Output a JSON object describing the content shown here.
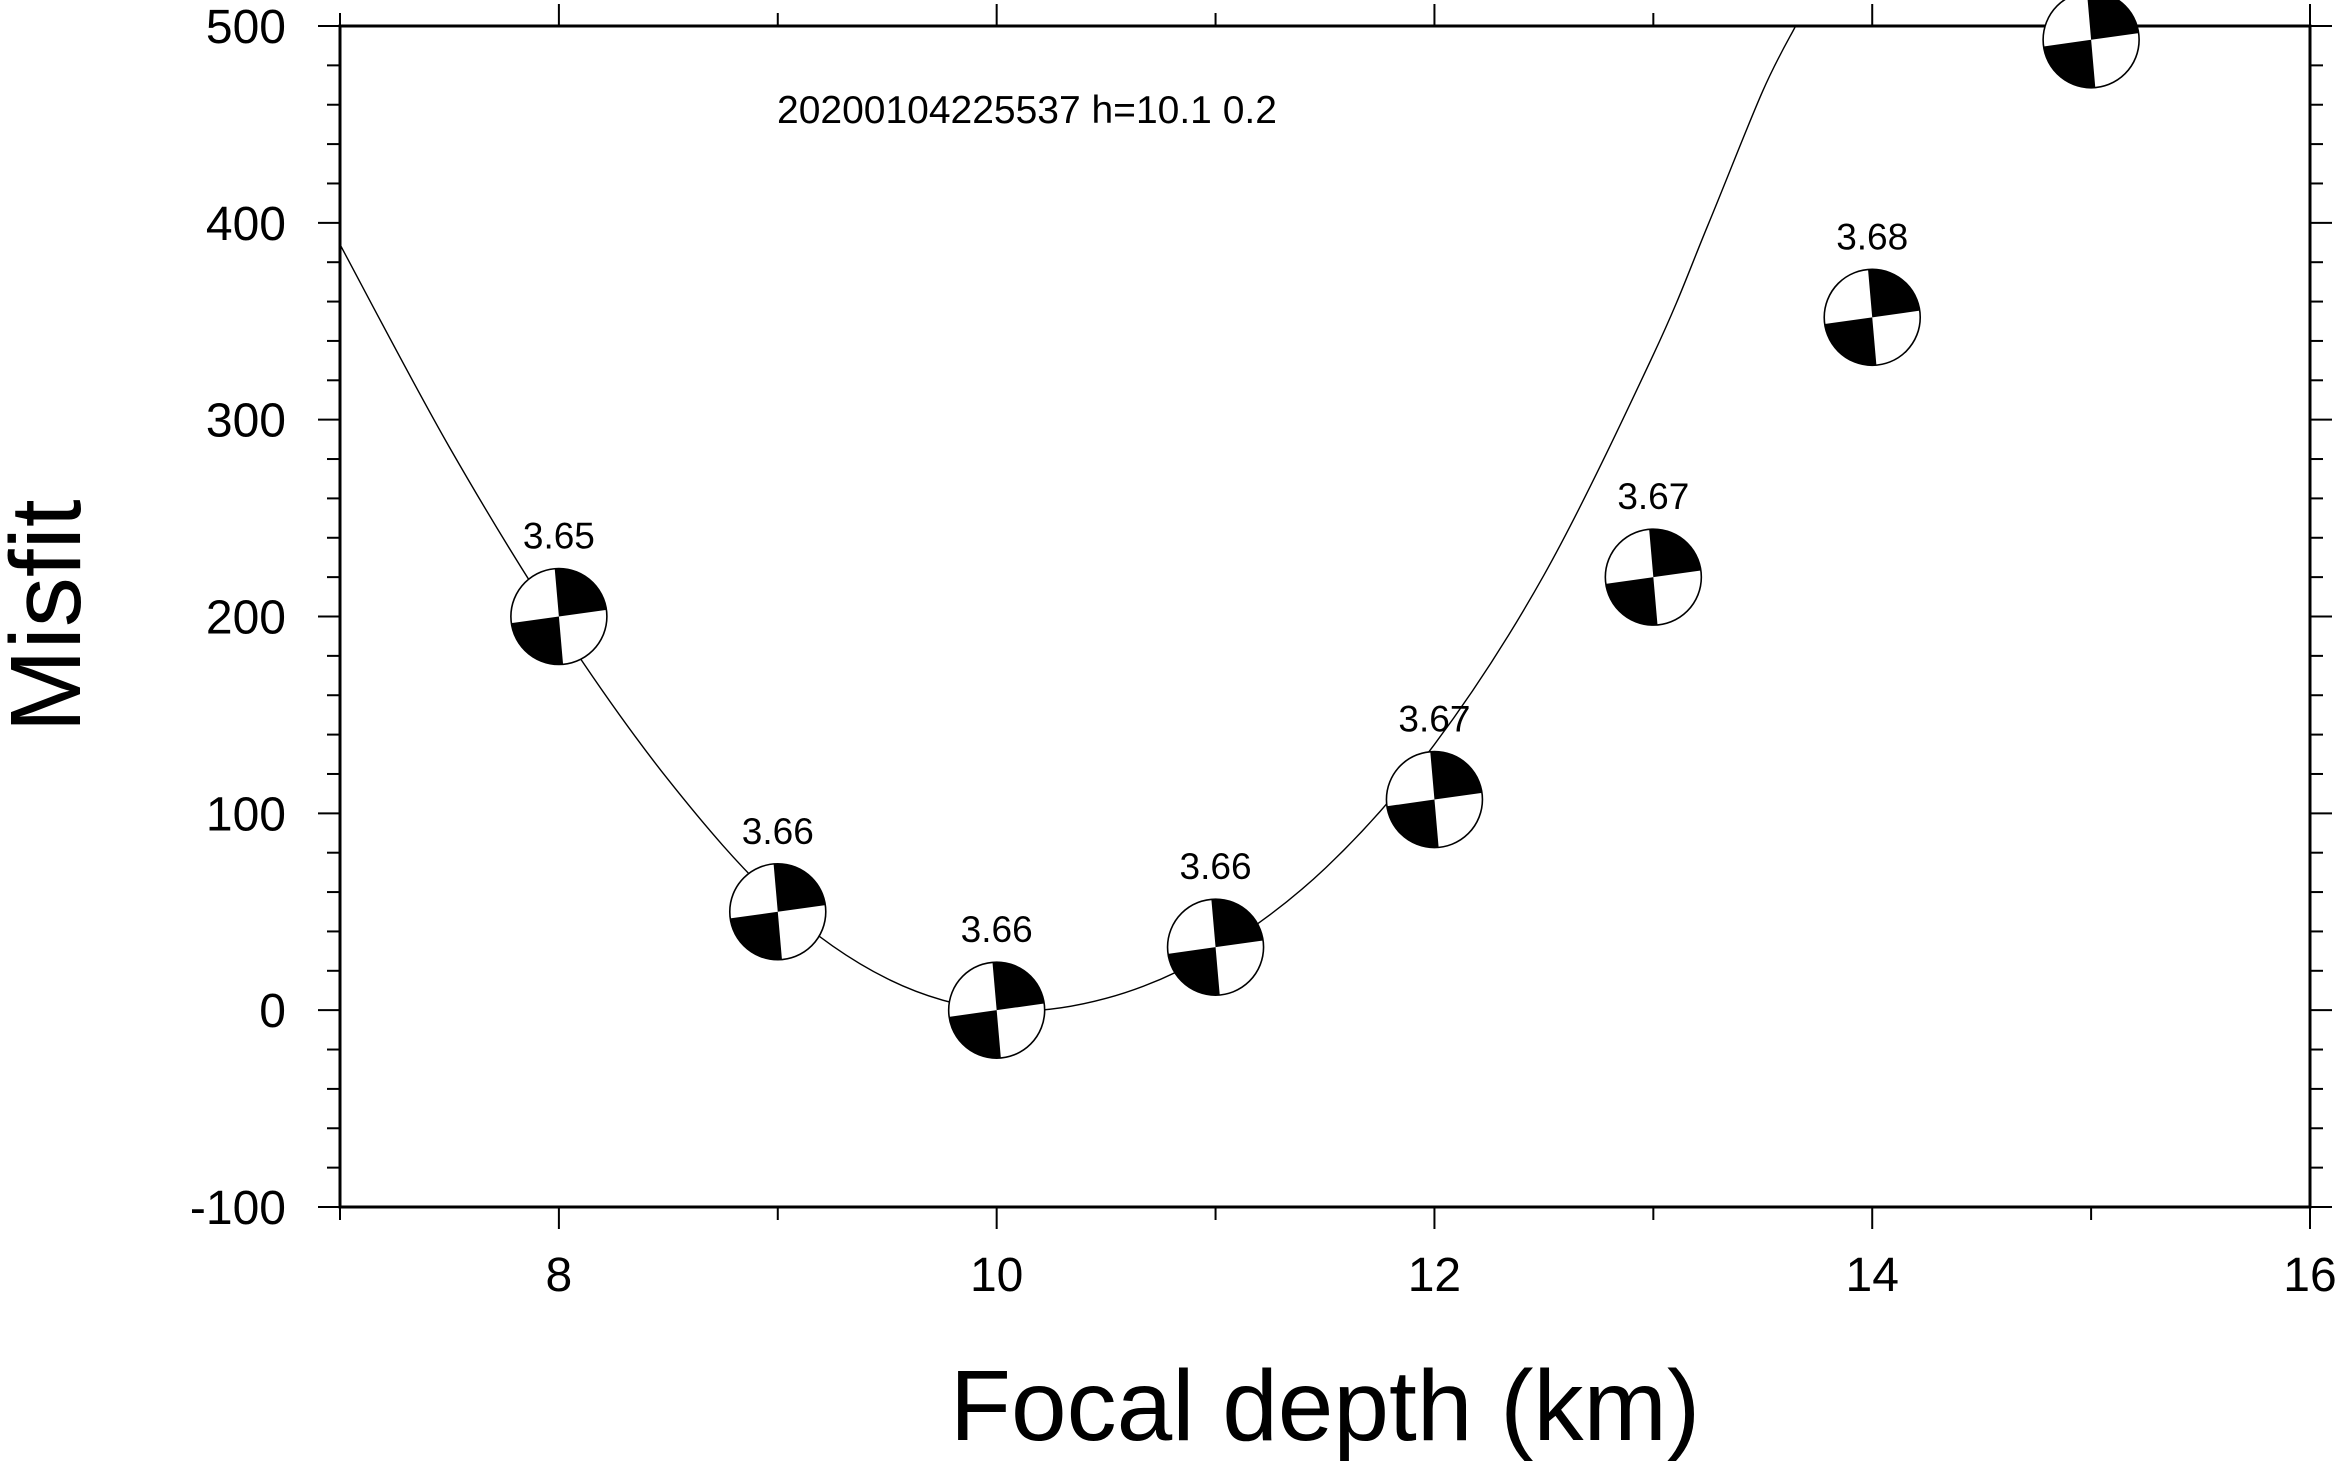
{
  "chart_data": {
    "type": "scatter",
    "annotation": "20200104225537 h=10.1  0.2",
    "xlabel": "Focal depth (km)",
    "ylabel": "Misfit",
    "xlim": [
      7,
      16
    ],
    "ylim": [
      -100,
      500
    ],
    "x_ticks": [
      8,
      10,
      12,
      14,
      16
    ],
    "y_ticks": [
      -100,
      0,
      100,
      200,
      300,
      400,
      500
    ],
    "grid": false,
    "points": [
      {
        "x": 8,
        "y": 200,
        "label": "3.65"
      },
      {
        "x": 9,
        "y": 50,
        "label": "3.66"
      },
      {
        "x": 10,
        "y": 0,
        "label": "3.66"
      },
      {
        "x": 11,
        "y": 32,
        "label": "3.66"
      },
      {
        "x": 12,
        "y": 107,
        "label": "3.67"
      },
      {
        "x": 13,
        "y": 220,
        "label": "3.67"
      },
      {
        "x": 14,
        "y": 352,
        "label": "3.68"
      },
      {
        "x": 15,
        "y": 493,
        "label": ""
      }
    ],
    "fit_curve": {
      "x": [
        7,
        7.5,
        8,
        8.5,
        9,
        9.5,
        10,
        10.5,
        11,
        11.5,
        12,
        12.5,
        13,
        13.25,
        13.5,
        13.65
      ],
      "y": [
        389,
        286,
        195,
        117,
        55,
        16,
        0,
        6,
        30,
        72,
        135,
        221,
        333,
        399,
        467,
        500
      ]
    }
  }
}
